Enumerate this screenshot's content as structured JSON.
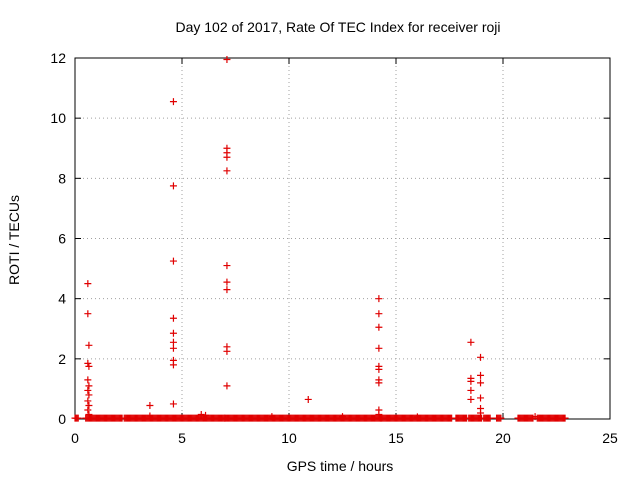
{
  "chart_data": {
    "type": "scatter",
    "title": "Day 102 of 2017, Rate Of TEC Index for receiver roji",
    "xlabel": "GPS time / hours",
    "ylabel": "ROTI / TECUs",
    "xlim": [
      0,
      25
    ],
    "ylim": [
      0,
      12
    ],
    "xticks": [
      0,
      5,
      10,
      15,
      20,
      25
    ],
    "yticks": [
      0,
      2,
      4,
      6,
      8,
      10,
      12
    ],
    "grid": true,
    "marker": "plus",
    "color": "#e00000",
    "series": [
      {
        "points": [
          [
            0.6,
            4.5
          ],
          [
            0.6,
            3.5
          ],
          [
            0.65,
            2.45
          ],
          [
            0.6,
            1.85
          ],
          [
            0.65,
            1.75
          ],
          [
            0.6,
            1.3
          ],
          [
            0.65,
            1.1
          ],
          [
            0.6,
            0.95
          ],
          [
            0.65,
            0.8
          ],
          [
            0.6,
            0.6
          ],
          [
            0.65,
            0.45
          ],
          [
            0.6,
            0.3
          ],
          [
            0.65,
            0.15
          ],
          [
            3.5,
            0.45
          ],
          [
            3.5,
            0.1
          ],
          [
            4.6,
            10.55
          ],
          [
            4.6,
            7.75
          ],
          [
            4.6,
            5.25
          ],
          [
            4.6,
            3.35
          ],
          [
            4.6,
            2.85
          ],
          [
            4.6,
            2.55
          ],
          [
            4.6,
            2.35
          ],
          [
            4.6,
            1.95
          ],
          [
            4.6,
            1.8
          ],
          [
            4.6,
            0.5
          ],
          [
            7.1,
            11.95
          ],
          [
            7.1,
            9.0
          ],
          [
            7.1,
            8.85
          ],
          [
            7.1,
            8.7
          ],
          [
            7.1,
            8.25
          ],
          [
            7.1,
            5.1
          ],
          [
            7.1,
            4.55
          ],
          [
            7.1,
            4.3
          ],
          [
            7.1,
            2.4
          ],
          [
            7.1,
            2.25
          ],
          [
            7.1,
            1.1
          ],
          [
            10.9,
            0.65
          ],
          [
            14.2,
            4.0
          ],
          [
            14.2,
            3.5
          ],
          [
            14.2,
            3.05
          ],
          [
            14.2,
            2.35
          ],
          [
            14.2,
            1.75
          ],
          [
            14.2,
            1.65
          ],
          [
            14.2,
            1.3
          ],
          [
            14.2,
            1.2
          ],
          [
            14.2,
            0.3
          ],
          [
            14.2,
            0.15
          ],
          [
            18.5,
            2.55
          ],
          [
            18.5,
            1.35
          ],
          [
            18.5,
            1.25
          ],
          [
            18.5,
            0.95
          ],
          [
            18.5,
            0.65
          ],
          [
            18.95,
            2.05
          ],
          [
            18.95,
            1.45
          ],
          [
            18.95,
            1.2
          ],
          [
            18.95,
            0.7
          ],
          [
            18.95,
            0.35
          ],
          [
            18.95,
            0.2
          ],
          [
            5.9,
            0.15
          ],
          [
            6.1,
            0.12
          ],
          [
            9.2,
            0.08
          ],
          [
            12.5,
            0.08
          ],
          [
            16.0,
            0.07
          ],
          [
            21.5,
            0.08
          ]
        ],
        "baseline_segments": [
          [
            0.0,
            0.15
          ],
          [
            0.5,
            2.2
          ],
          [
            2.3,
            4.9
          ],
          [
            4.95,
            7.0
          ],
          [
            7.0,
            14.3
          ],
          [
            14.3,
            17.6
          ],
          [
            17.8,
            18.3
          ],
          [
            18.4,
            19.0
          ],
          [
            19.1,
            19.4
          ],
          [
            19.7,
            19.9
          ],
          [
            20.7,
            21.4
          ],
          [
            21.6,
            22.9
          ]
        ],
        "baseline_value": 0.03
      }
    ]
  }
}
